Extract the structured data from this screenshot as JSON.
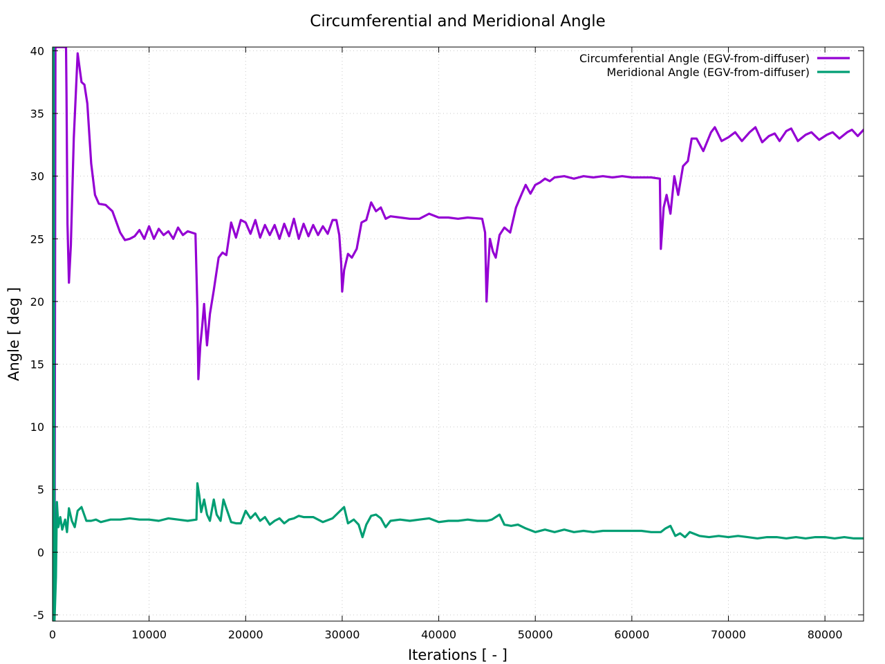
{
  "chart_data": {
    "type": "line",
    "title": "Circumferential and Meridional Angle",
    "xlabel": "Iterations [ - ]",
    "ylabel": "Angle [ deg ]",
    "xlim": [
      0,
      84000
    ],
    "ylim": [
      -5.5,
      40.3
    ],
    "xticks": [
      0,
      10000,
      20000,
      30000,
      40000,
      50000,
      60000,
      70000,
      80000
    ],
    "yticks": [
      -5,
      0,
      5,
      10,
      15,
      20,
      25,
      30,
      35,
      40
    ],
    "grid": true,
    "legend_position": "top-right",
    "series": [
      {
        "name": "Circumferential Angle (EGV-from-diffuser)",
        "color": "#9400d3",
        "points": [
          [
            200,
            -5.5
          ],
          [
            300,
            40.3
          ],
          [
            1400,
            40.3
          ],
          [
            1450,
            36.5
          ],
          [
            1500,
            31.3
          ],
          [
            1550,
            26.2
          ],
          [
            1700,
            21.5
          ],
          [
            1900,
            24.5
          ],
          [
            2200,
            33
          ],
          [
            2600,
            39.8
          ],
          [
            3000,
            37.5
          ],
          [
            3300,
            37.3
          ],
          [
            3600,
            35.8
          ],
          [
            4000,
            31
          ],
          [
            4400,
            28.5
          ],
          [
            4800,
            27.8
          ],
          [
            5500,
            27.7
          ],
          [
            6200,
            27.2
          ],
          [
            7000,
            25.5
          ],
          [
            7500,
            24.9
          ],
          [
            8000,
            25
          ],
          [
            8500,
            25.2
          ],
          [
            9000,
            25.7
          ],
          [
            9500,
            25
          ],
          [
            10000,
            26
          ],
          [
            10500,
            25
          ],
          [
            11000,
            25.8
          ],
          [
            11500,
            25.3
          ],
          [
            12000,
            25.6
          ],
          [
            12500,
            25
          ],
          [
            13000,
            25.9
          ],
          [
            13500,
            25.3
          ],
          [
            14000,
            25.6
          ],
          [
            14800,
            25.4
          ],
          [
            15000,
            19.4
          ],
          [
            15100,
            13.8
          ],
          [
            15300,
            16.5
          ],
          [
            15500,
            18
          ],
          [
            15700,
            19.8
          ],
          [
            16000,
            16.5
          ],
          [
            16300,
            19
          ],
          [
            16700,
            20.9
          ],
          [
            17200,
            23.5
          ],
          [
            17600,
            23.9
          ],
          [
            18000,
            23.7
          ],
          [
            18500,
            26.3
          ],
          [
            19000,
            25.1
          ],
          [
            19500,
            26.5
          ],
          [
            20000,
            26.3
          ],
          [
            20500,
            25.4
          ],
          [
            21000,
            26.5
          ],
          [
            21500,
            25.1
          ],
          [
            22000,
            26.1
          ],
          [
            22500,
            25.3
          ],
          [
            23000,
            26.1
          ],
          [
            23500,
            25
          ],
          [
            24000,
            26.2
          ],
          [
            24500,
            25.2
          ],
          [
            25000,
            26.6
          ],
          [
            25500,
            25
          ],
          [
            26000,
            26.2
          ],
          [
            26500,
            25.2
          ],
          [
            27000,
            26.1
          ],
          [
            27500,
            25.3
          ],
          [
            28000,
            26
          ],
          [
            28500,
            25.4
          ],
          [
            29000,
            26.5
          ],
          [
            29400,
            26.5
          ],
          [
            29700,
            25.3
          ],
          [
            29900,
            23
          ],
          [
            30000,
            20.8
          ],
          [
            30200,
            22.5
          ],
          [
            30600,
            23.8
          ],
          [
            31000,
            23.5
          ],
          [
            31500,
            24.2
          ],
          [
            32000,
            26.3
          ],
          [
            32500,
            26.5
          ],
          [
            33000,
            27.9
          ],
          [
            33500,
            27.2
          ],
          [
            34000,
            27.5
          ],
          [
            34500,
            26.6
          ],
          [
            35000,
            26.8
          ],
          [
            36000,
            26.7
          ],
          [
            37000,
            26.6
          ],
          [
            38000,
            26.6
          ],
          [
            39000,
            27
          ],
          [
            40000,
            26.7
          ],
          [
            41000,
            26.7
          ],
          [
            42000,
            26.6
          ],
          [
            43000,
            26.7
          ],
          [
            44500,
            26.6
          ],
          [
            44800,
            25.5
          ],
          [
            44950,
            20
          ],
          [
            45100,
            22.5
          ],
          [
            45300,
            25
          ],
          [
            45600,
            24
          ],
          [
            45900,
            23.5
          ],
          [
            46300,
            25.3
          ],
          [
            46800,
            25.9
          ],
          [
            47400,
            25.5
          ],
          [
            48000,
            27.5
          ],
          [
            48600,
            28.6
          ],
          [
            49000,
            29.3
          ],
          [
            49500,
            28.6
          ],
          [
            50000,
            29.3
          ],
          [
            50500,
            29.5
          ],
          [
            51000,
            29.8
          ],
          [
            51500,
            29.6
          ],
          [
            52000,
            29.9
          ],
          [
            53000,
            30
          ],
          [
            54000,
            29.8
          ],
          [
            55000,
            30
          ],
          [
            56000,
            29.9
          ],
          [
            57000,
            30
          ],
          [
            58000,
            29.9
          ],
          [
            59000,
            30
          ],
          [
            60000,
            29.9
          ],
          [
            61000,
            29.9
          ],
          [
            62000,
            29.9
          ],
          [
            62900,
            29.8
          ],
          [
            63000,
            24.2
          ],
          [
            63300,
            27.5
          ],
          [
            63600,
            28.5
          ],
          [
            64000,
            27
          ],
          [
            64400,
            30
          ],
          [
            64800,
            28.5
          ],
          [
            65300,
            30.8
          ],
          [
            65800,
            31.2
          ],
          [
            66200,
            33
          ],
          [
            66700,
            33
          ],
          [
            67400,
            32
          ],
          [
            68200,
            33.5
          ],
          [
            68600,
            33.9
          ],
          [
            69300,
            32.8
          ],
          [
            70000,
            33.1
          ],
          [
            70700,
            33.5
          ],
          [
            71400,
            32.8
          ],
          [
            72200,
            33.5
          ],
          [
            72800,
            33.9
          ],
          [
            73500,
            32.7
          ],
          [
            74200,
            33.2
          ],
          [
            74800,
            33.4
          ],
          [
            75300,
            32.8
          ],
          [
            76000,
            33.6
          ],
          [
            76500,
            33.8
          ],
          [
            77200,
            32.8
          ],
          [
            78000,
            33.3
          ],
          [
            78600,
            33.5
          ],
          [
            79400,
            32.9
          ],
          [
            80200,
            33.3
          ],
          [
            80800,
            33.5
          ],
          [
            81500,
            33
          ],
          [
            82300,
            33.5
          ],
          [
            82800,
            33.7
          ],
          [
            83400,
            33.2
          ],
          [
            84000,
            33.7
          ]
        ]
      },
      {
        "name": "Meridional Angle (EGV-from-diffuser)",
        "color": "#009e73",
        "points": [
          [
            0,
            -5.5
          ],
          [
            120,
            40.3
          ],
          [
            200,
            -5.5
          ],
          [
            350,
            -2
          ],
          [
            450,
            4
          ],
          [
            600,
            2
          ],
          [
            800,
            2.8
          ],
          [
            1000,
            1.8
          ],
          [
            1300,
            2.6
          ],
          [
            1500,
            1.6
          ],
          [
            1700,
            3.5
          ],
          [
            2000,
            2.5
          ],
          [
            2300,
            2
          ],
          [
            2600,
            3.3
          ],
          [
            3000,
            3.6
          ],
          [
            3500,
            2.5
          ],
          [
            4000,
            2.5
          ],
          [
            4500,
            2.6
          ],
          [
            5000,
            2.4
          ],
          [
            6000,
            2.6
          ],
          [
            7000,
            2.6
          ],
          [
            8000,
            2.7
          ],
          [
            9000,
            2.6
          ],
          [
            10000,
            2.6
          ],
          [
            11000,
            2.5
          ],
          [
            12000,
            2.7
          ],
          [
            13000,
            2.6
          ],
          [
            14000,
            2.5
          ],
          [
            14900,
            2.6
          ],
          [
            15000,
            5.5
          ],
          [
            15200,
            4.5
          ],
          [
            15400,
            3.2
          ],
          [
            15700,
            4.2
          ],
          [
            16000,
            3
          ],
          [
            16300,
            2.5
          ],
          [
            16700,
            4.2
          ],
          [
            17000,
            3
          ],
          [
            17400,
            2.5
          ],
          [
            17700,
            4.2
          ],
          [
            18000,
            3.5
          ],
          [
            18500,
            2.4
          ],
          [
            19000,
            2.3
          ],
          [
            19500,
            2.3
          ],
          [
            20000,
            3.3
          ],
          [
            20500,
            2.7
          ],
          [
            21000,
            3.1
          ],
          [
            21500,
            2.5
          ],
          [
            22000,
            2.8
          ],
          [
            22500,
            2.2
          ],
          [
            23000,
            2.5
          ],
          [
            23500,
            2.7
          ],
          [
            24000,
            2.3
          ],
          [
            24500,
            2.6
          ],
          [
            25000,
            2.7
          ],
          [
            25500,
            2.9
          ],
          [
            26000,
            2.8
          ],
          [
            27000,
            2.8
          ],
          [
            28000,
            2.4
          ],
          [
            29000,
            2.7
          ],
          [
            29800,
            3.3
          ],
          [
            30200,
            3.6
          ],
          [
            30600,
            2.3
          ],
          [
            31200,
            2.6
          ],
          [
            31700,
            2.2
          ],
          [
            32100,
            1.2
          ],
          [
            32500,
            2.2
          ],
          [
            33000,
            2.9
          ],
          [
            33500,
            3
          ],
          [
            34000,
            2.7
          ],
          [
            34500,
            2
          ],
          [
            35000,
            2.5
          ],
          [
            36000,
            2.6
          ],
          [
            37000,
            2.5
          ],
          [
            38000,
            2.6
          ],
          [
            39000,
            2.7
          ],
          [
            40000,
            2.4
          ],
          [
            41000,
            2.5
          ],
          [
            42000,
            2.5
          ],
          [
            43000,
            2.6
          ],
          [
            44000,
            2.5
          ],
          [
            45000,
            2.5
          ],
          [
            45500,
            2.6
          ],
          [
            46300,
            3
          ],
          [
            46800,
            2.2
          ],
          [
            47500,
            2.1
          ],
          [
            48200,
            2.2
          ],
          [
            49000,
            1.9
          ],
          [
            50000,
            1.6
          ],
          [
            51000,
            1.8
          ],
          [
            52000,
            1.6
          ],
          [
            53000,
            1.8
          ],
          [
            54000,
            1.6
          ],
          [
            55000,
            1.7
          ],
          [
            56000,
            1.6
          ],
          [
            57000,
            1.7
          ],
          [
            58000,
            1.7
          ],
          [
            59000,
            1.7
          ],
          [
            60000,
            1.7
          ],
          [
            61000,
            1.7
          ],
          [
            62000,
            1.6
          ],
          [
            63000,
            1.6
          ],
          [
            63500,
            1.9
          ],
          [
            64000,
            2.1
          ],
          [
            64500,
            1.3
          ],
          [
            65000,
            1.5
          ],
          [
            65500,
            1.2
          ],
          [
            66000,
            1.6
          ],
          [
            67000,
            1.3
          ],
          [
            68000,
            1.2
          ],
          [
            69000,
            1.3
          ],
          [
            70000,
            1.2
          ],
          [
            71000,
            1.3
          ],
          [
            72000,
            1.2
          ],
          [
            73000,
            1.1
          ],
          [
            74000,
            1.2
          ],
          [
            75000,
            1.2
          ],
          [
            76000,
            1.1
          ],
          [
            77000,
            1.2
          ],
          [
            78000,
            1.1
          ],
          [
            79000,
            1.2
          ],
          [
            80000,
            1.2
          ],
          [
            81000,
            1.1
          ],
          [
            82000,
            1.2
          ],
          [
            83000,
            1.1
          ],
          [
            84000,
            1.1
          ]
        ]
      }
    ]
  }
}
